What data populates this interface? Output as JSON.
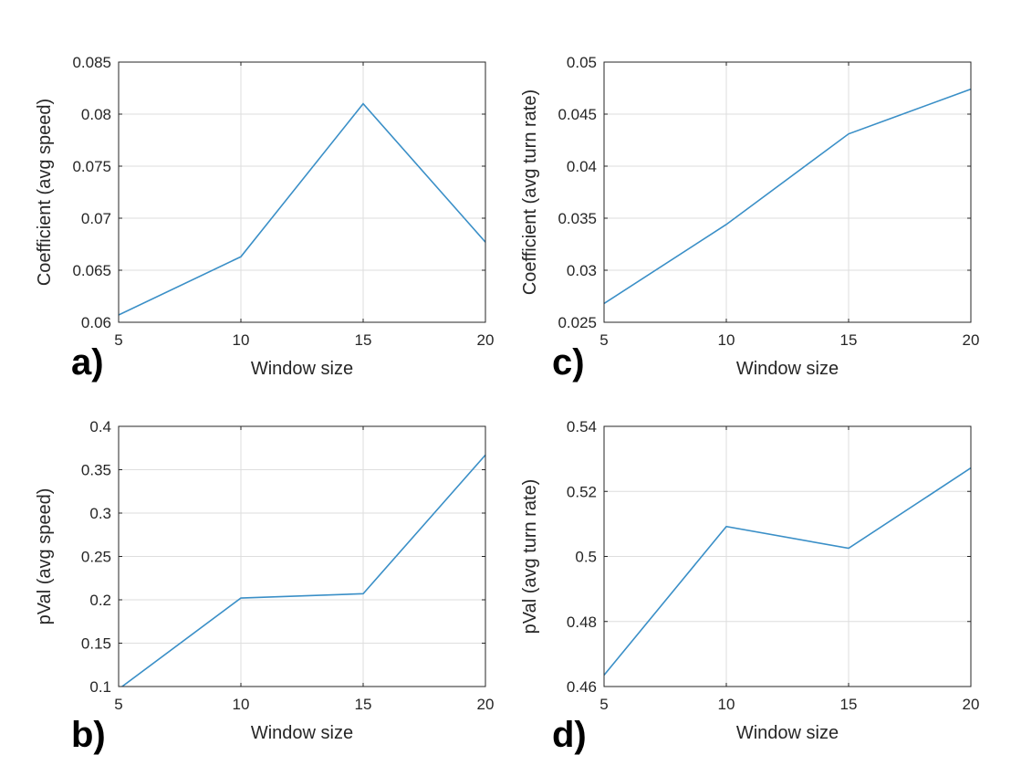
{
  "chart_data": [
    {
      "panel": "a)",
      "type": "line",
      "x": [
        5,
        10,
        15,
        20
      ],
      "y": [
        0.0607,
        0.0663,
        0.081,
        0.0677
      ],
      "xlabel": "Window size",
      "ylabel": "Coefficient (avg speed)",
      "xlim": [
        5,
        20
      ],
      "ylim": [
        0.06,
        0.085
      ],
      "xticks": [
        "5",
        "10",
        "15",
        "20"
      ],
      "yticks": [
        "0.06",
        "0.065",
        "0.07",
        "0.075",
        "0.08",
        "0.085"
      ],
      "grid": true,
      "line_color": "#3a8fc7"
    },
    {
      "panel": "b)",
      "type": "line",
      "x": [
        5,
        10,
        15,
        20
      ],
      "y": [
        0.097,
        0.202,
        0.207,
        0.367
      ],
      "xlabel": "Window size",
      "ylabel": "pVal (avg speed)",
      "xlim": [
        5,
        20
      ],
      "ylim": [
        0.1,
        0.4
      ],
      "xticks": [
        "5",
        "10",
        "15",
        "20"
      ],
      "yticks": [
        "0.1",
        "0.15",
        "0.2",
        "0.25",
        "0.3",
        "0.35",
        "0.4"
      ],
      "grid": true,
      "line_color": "#3a8fc7"
    },
    {
      "panel": "c)",
      "type": "line",
      "x": [
        5,
        10,
        15,
        20
      ],
      "y": [
        0.0268,
        0.0344,
        0.0431,
        0.0474
      ],
      "xlabel": "Window size",
      "ylabel": "Coefficient (avg turn rate)",
      "xlim": [
        5,
        20
      ],
      "ylim": [
        0.025,
        0.05
      ],
      "xticks": [
        "5",
        "10",
        "15",
        "20"
      ],
      "yticks": [
        "0.025",
        "0.03",
        "0.035",
        "0.04",
        "0.045",
        "0.05"
      ],
      "grid": true,
      "line_color": "#3a8fc7"
    },
    {
      "panel": "d)",
      "type": "line",
      "x": [
        5,
        10,
        15,
        20
      ],
      "y": [
        0.4635,
        0.5092,
        0.5025,
        0.5272
      ],
      "xlabel": "Window size",
      "ylabel": "pVal (avg turn rate)",
      "xlim": [
        5,
        20
      ],
      "ylim": [
        0.46,
        0.54
      ],
      "xticks": [
        "5",
        "10",
        "15",
        "20"
      ],
      "yticks": [
        "0.46",
        "0.48",
        "0.5",
        "0.52",
        "0.54"
      ],
      "grid": true,
      "line_color": "#3a8fc7"
    }
  ]
}
